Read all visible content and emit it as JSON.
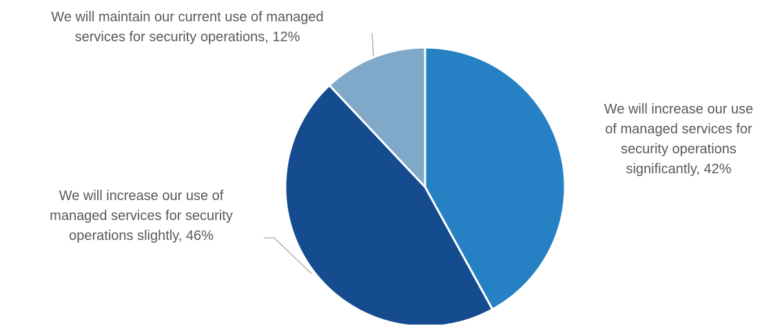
{
  "chart_data": {
    "type": "pie",
    "title": "",
    "start_angle_deg": 0,
    "direction": "clockwise",
    "slices": [
      {
        "label_lines": [
          "We will increase our use",
          "of managed services for",
          "security operations",
          "significantly, 42%"
        ],
        "value": 42,
        "color": "#2581c4"
      },
      {
        "label_lines": [
          "We will increase our use of",
          "managed services for security",
          "operations slightly, 46%"
        ],
        "value": 46,
        "color": "#144c8f"
      },
      {
        "label_lines": [
          "We will maintain our current use of managed",
          "services for security operations, 12%"
        ],
        "value": 12,
        "color": "#7fa8c9"
      }
    ],
    "legend": "none",
    "leader_line_color": "#a6a6a6",
    "slice_border_color": "#ffffff"
  }
}
